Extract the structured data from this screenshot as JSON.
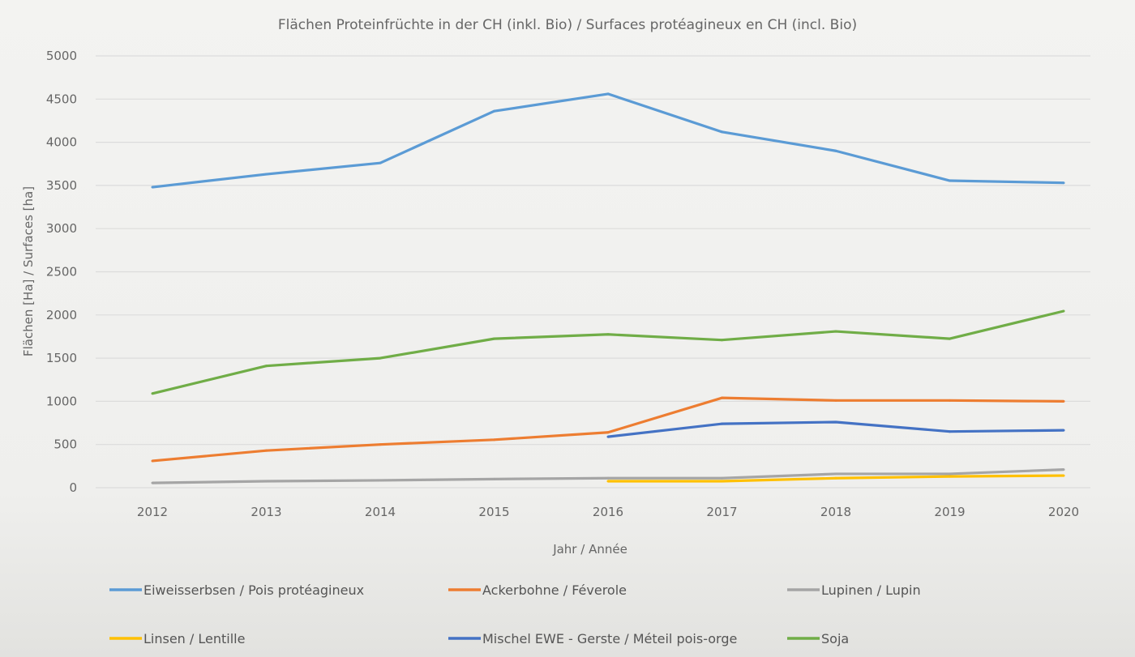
{
  "chart_data": {
    "type": "line",
    "title": "Flächen Proteinfrüchte in der CH (inkl. Bio) / Surfaces protéagineux en CH (incl. Bio)",
    "xlabel": "Jahr / Année",
    "ylabel": "Flächen [Ha] / Surfaces [ha]",
    "ylim": [
      0,
      5000
    ],
    "yticks": [
      0,
      500,
      1000,
      1500,
      2000,
      2500,
      3000,
      3500,
      4000,
      4500,
      5000
    ],
    "grid": true,
    "legend_placement": "bottom",
    "categories": [
      "2012",
      "2013",
      "2014",
      "2015",
      "2016",
      "2017",
      "2018",
      "2019",
      "2020"
    ],
    "series": [
      {
        "name": "Eiweisserbsen / Pois protéagineux",
        "color": "#5b9bd5",
        "values": [
          3480,
          3630,
          3760,
          4360,
          4560,
          4120,
          3900,
          3555,
          3530
        ]
      },
      {
        "name": "Ackerbohne / Féverole",
        "color": "#ed7d31",
        "values": [
          310,
          430,
          500,
          555,
          640,
          1040,
          1010,
          1010,
          1000
        ]
      },
      {
        "name": "Lupinen / Lupin",
        "color": "#a5a5a5",
        "values": [
          55,
          75,
          85,
          100,
          110,
          110,
          160,
          160,
          210
        ]
      },
      {
        "name": "Linsen / Lentille",
        "color": "#ffc000",
        "values": [
          null,
          null,
          null,
          null,
          75,
          75,
          110,
          130,
          140
        ]
      },
      {
        "name": "Mischel EWE - Gerste / Méteil pois-orge",
        "color": "#4472c4",
        "values": [
          null,
          null,
          null,
          null,
          590,
          740,
          760,
          650,
          665
        ]
      },
      {
        "name": "Soja",
        "color": "#70ad47",
        "values": [
          1090,
          1410,
          1500,
          1725,
          1775,
          1710,
          1810,
          1725,
          2045
        ]
      }
    ]
  }
}
